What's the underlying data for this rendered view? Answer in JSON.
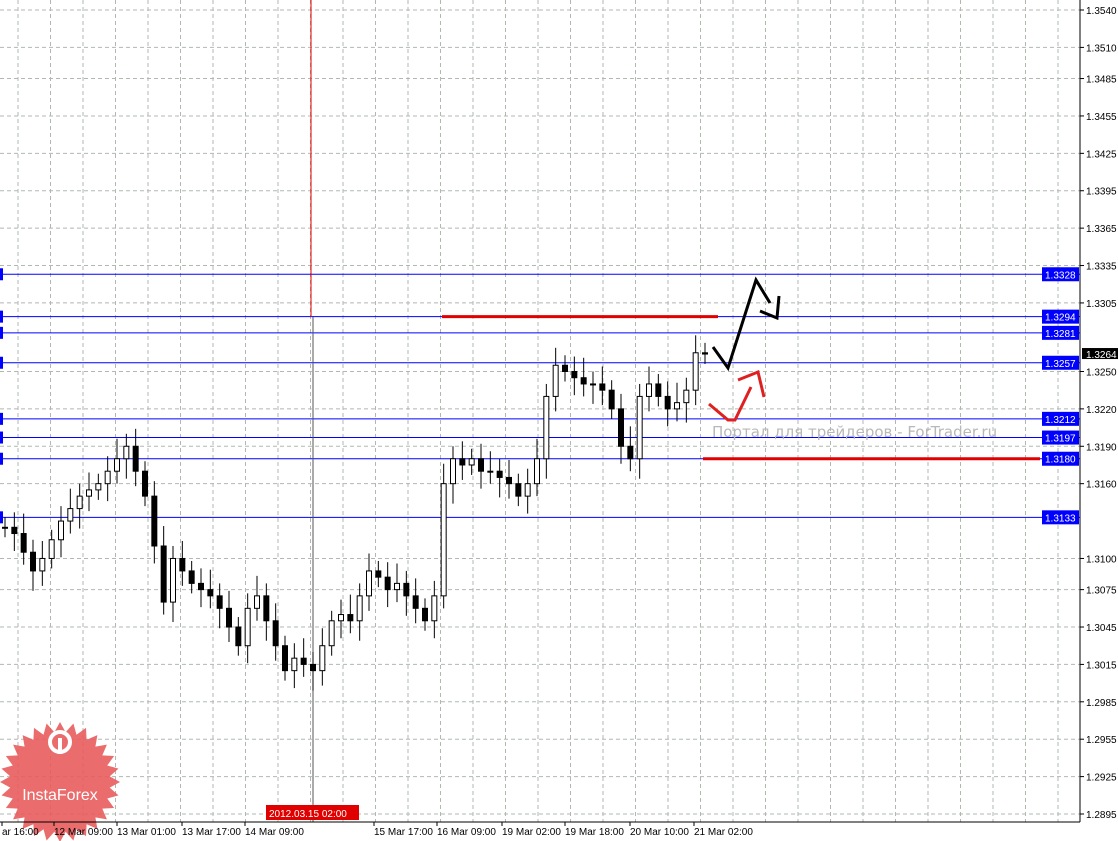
{
  "chart_data": {
    "type": "candlestick",
    "grid": true,
    "ylim": [
      1.288,
      1.3548
    ],
    "y_ticks": [
      "1.3540",
      "1.3510",
      "1.3485",
      "1.3455",
      "1.3425",
      "1.3395",
      "1.3365",
      "1.3335",
      "1.3305",
      "1.3250",
      "1.3220",
      "1.3190",
      "1.3160",
      "1.3100",
      "1.3075",
      "1.3045",
      "1.3015",
      "1.2985",
      "1.2955",
      "1.2925",
      "1.2895"
    ],
    "x_ticks": [
      "ar 16:00",
      "12 Mar 09:00",
      "13 Mar 01:00",
      "13 Mar 17:00",
      "14 Mar 09:00",
      "15 Mar 17:00",
      "16 Mar 09:00",
      "19 Mar 02:00",
      "19 Mar 18:00",
      "20 Mar 10:00",
      "21 Mar 02:00"
    ],
    "crosshair_time": "2012.03.15 02:00",
    "current_price": "1.3264",
    "closes": [
      1.3125,
      1.312,
      1.3105,
      1.309,
      1.31,
      1.3115,
      1.313,
      1.314,
      1.315,
      1.3155,
      1.316,
      1.317,
      1.318,
      1.319,
      1.317,
      1.315,
      1.311,
      1.3065,
      1.31,
      1.309,
      1.308,
      1.3075,
      1.307,
      1.306,
      1.3045,
      1.303,
      1.306,
      1.307,
      1.305,
      1.303,
      1.301,
      1.302,
      1.3015,
      1.301,
      1.303,
      1.305,
      1.3055,
      1.305,
      1.307,
      1.309,
      1.3085,
      1.3075,
      1.308,
      1.307,
      1.306,
      1.305,
      1.307,
      1.316,
      1.318,
      1.3175,
      1.318,
      1.317,
      1.317,
      1.3165,
      1.316,
      1.315,
      1.316,
      1.318,
      1.323,
      1.3255,
      1.325,
      1.3245,
      1.324,
      1.324,
      1.3235,
      1.322,
      1.319,
      1.318,
      1.323,
      1.324,
      1.323,
      1.322,
      1.3225,
      1.3235,
      1.3265,
      1.3264
    ],
    "levels": [
      {
        "price": 1.3328,
        "label": "1.3328"
      },
      {
        "price": 1.3294,
        "label": "1.3294"
      },
      {
        "price": 1.3281,
        "label": "1.3281"
      },
      {
        "price": 1.3257,
        "label": "1.3257"
      },
      {
        "price": 1.3212,
        "label": "1.3212"
      },
      {
        "price": 1.3197,
        "label": "1.3197"
      },
      {
        "price": 1.318,
        "label": "1.3180"
      },
      {
        "price": 1.3133,
        "label": "1.3133"
      }
    ],
    "red_segments": [
      {
        "price": 1.3294
      },
      {
        "price": 1.318
      }
    ]
  },
  "watermark": "Портал для трейдеров - ForTrader.ru",
  "logo": "InstaForex",
  "colors": {
    "level": "#0000ff",
    "label_bg": "#0000ff",
    "red": "#e00000",
    "candle": "#000000",
    "grid": "#b0b8b0",
    "logo": "#e85c5c"
  }
}
